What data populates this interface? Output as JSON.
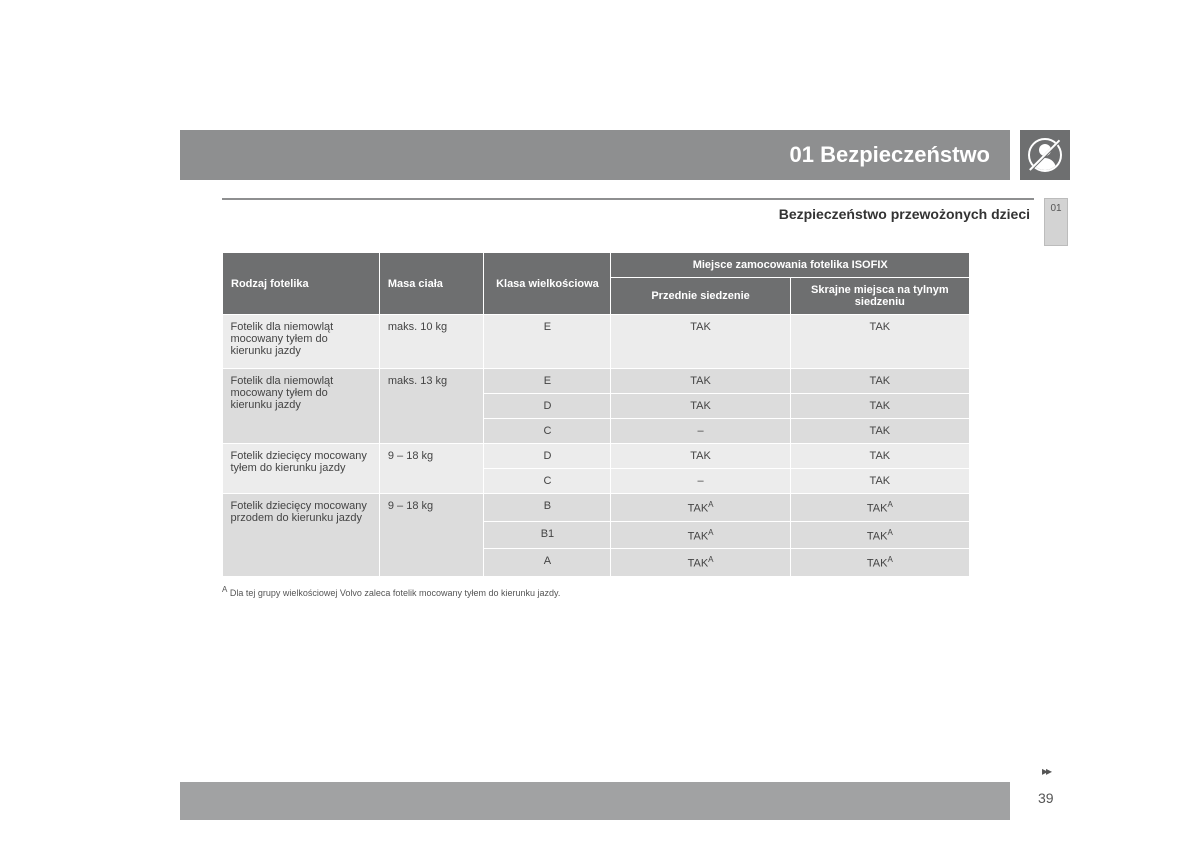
{
  "header": {
    "title": "01 Bezpieczeństwo"
  },
  "sidetab": {
    "label": "01"
  },
  "subheader": {
    "title": "Bezpieczeństwo przewożonych dzieci"
  },
  "table": {
    "headers": {
      "col1": "Rodzaj fotelika",
      "col2": "Masa ciała",
      "col3": "Klasa wielkościowa",
      "col4_group": "Miejsce zamocowania fotelika ISOFIX",
      "col4a": "Przednie siedzenie",
      "col4b": "Skrajne miejsca na tylnym siedzeniu"
    },
    "groups": [
      {
        "type": "Fotelik dla niemowląt mocowany tyłem do kierunku jazdy",
        "mass": "maks. 10 kg",
        "shade": "light",
        "rows": [
          {
            "klass": "E",
            "front": "TAK",
            "rear": "TAK",
            "sup": false
          }
        ]
      },
      {
        "type": "Fotelik dla niemowląt mocowany tyłem do kierunku jazdy",
        "mass": "maks. 13 kg",
        "shade": "dark",
        "rows": [
          {
            "klass": "E",
            "front": "TAK",
            "rear": "TAK",
            "sup": false
          },
          {
            "klass": "D",
            "front": "TAK",
            "rear": "TAK",
            "sup": false
          },
          {
            "klass": "C",
            "front": "–",
            "rear": "TAK",
            "sup": false
          }
        ]
      },
      {
        "type": "Fotelik dziecięcy mocowany tyłem do kierunku jazdy",
        "mass": "9 – 18 kg",
        "shade": "light",
        "rows": [
          {
            "klass": "D",
            "front": "TAK",
            "rear": "TAK",
            "sup": false
          },
          {
            "klass": "C",
            "front": "–",
            "rear": "TAK",
            "sup": false
          }
        ]
      },
      {
        "type": "Fotelik dziecięcy mocowany przodem do kierunku jazdy",
        "mass": "9 – 18 kg",
        "shade": "dark",
        "rows": [
          {
            "klass": "B",
            "front": "TAK",
            "rear": "TAK",
            "sup": true
          },
          {
            "klass": "B1",
            "front": "TAK",
            "rear": "TAK",
            "sup": true
          },
          {
            "klass": "A",
            "front": "TAK",
            "rear": "TAK",
            "sup": true
          }
        ]
      }
    ]
  },
  "footnote": {
    "marker": "A",
    "text": "Dla tej grupy wielkościowej Volvo zaleca fotelik mocowany tyłem do kierunku jazdy."
  },
  "footer": {
    "page": "39",
    "continue": "▸▸"
  },
  "colors": {
    "header_bg": "#8e8f90",
    "icon_bg": "#6e6f70",
    "th_bg": "#6e6f70",
    "row_light": "#ececec",
    "row_dark": "#dcdcdc",
    "footer_bg": "#a1a2a3"
  },
  "layout": {
    "col_widths_pct": [
      21,
      14,
      17,
      24,
      24
    ]
  }
}
